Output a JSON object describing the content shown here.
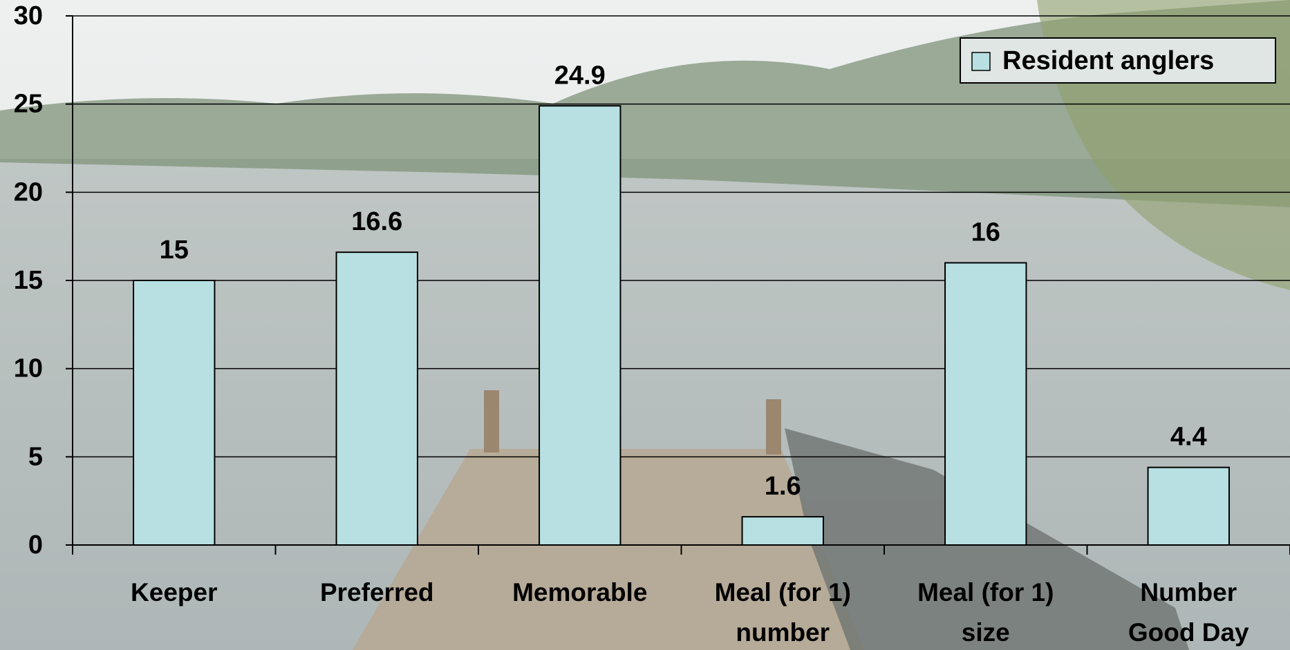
{
  "chart_data": {
    "type": "bar",
    "categories": [
      "Keeper",
      "Preferred",
      "Memorable",
      "Meal (for 1)\nnumber",
      "Meal (for 1)\nsize",
      "Number\nGood Day"
    ],
    "series": [
      {
        "name": "Resident anglers",
        "color": "#b8e0e2",
        "values": [
          15,
          16.6,
          24.9,
          1.6,
          16,
          4.4
        ]
      }
    ],
    "ylim": [
      0,
      30
    ],
    "yticks": [
      0,
      5,
      10,
      15,
      20,
      25,
      30
    ],
    "grid": true,
    "legend": "top-right"
  }
}
